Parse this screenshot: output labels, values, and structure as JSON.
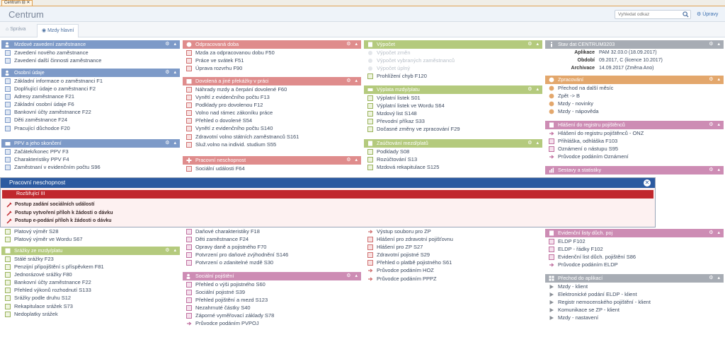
{
  "window": {
    "tab_label": "Centrum"
  },
  "header": {
    "title": "Centrum",
    "search_placeholder": "Vyhledat odkaz",
    "settings_label": "Úpravy"
  },
  "tabs": [
    {
      "label": "Správa"
    },
    {
      "label": "Mzdy hlavní"
    }
  ],
  "colors": {
    "blue": "#7d9ac8",
    "red": "#df8c8c",
    "green": "#b4ca7d",
    "pink": "#cd8cb4",
    "orange": "#e3a76c",
    "gray": "#a7acb4",
    "overlay_header": "#2c5aa0",
    "overlay_sub": "#c0272d"
  },
  "col1": {
    "p1": {
      "title": "Mzdové zavedení zaměstnance",
      "items": [
        "Zavedení nového zaměstnance",
        "Zavedení další činnosti zaměstnance"
      ]
    },
    "p2": {
      "title": "Osobní údaje",
      "items": [
        "Základní informace o zaměstnanci F1",
        "Doplňující údaje o zaměstnanci F2",
        "Adresy zaměstnance F21",
        "Základní osobní údaje F6",
        "Bankovní účty zaměstnance F22",
        "Děti zaměstnance F24",
        "Pracující důchodce F20"
      ]
    },
    "p3": {
      "title": "PPV a jeho skončení",
      "items": [
        "Začátek/konec PPV F3",
        "Charakteristiky PPV F4",
        "Zaměstnaní v evidenčním počtu S96"
      ]
    },
    "p3b": {
      "items": [
        "Platový výměr S28",
        "Platový výměr ve Wordu S67"
      ]
    },
    "p4": {
      "title": "Srážky ze mzdy/platu",
      "items": [
        "Stálé srážky F23",
        "Penzijní připojištění s příspěvkem F81",
        "Jednorázové srážky F80",
        "Bankovní účty zaměstnance F22",
        "Přehled výkonů rozhodnutí S133",
        "Srážky podle druhu S12",
        "Rekapitulace srážek S73",
        "Nedoplatky srážek"
      ]
    }
  },
  "col2": {
    "p1": {
      "title": "Odpracovaná doba",
      "items": [
        "Mzda za odpracovanou dobu F50",
        "Práce ve svátek F51",
        "Úprava rozvrhu F90"
      ]
    },
    "p2": {
      "title": "Dovolená a jiné překážky v práci",
      "items": [
        "Náhrady mzdy a čerpání dovolené F60",
        "Vynětí z evidenčního počtu F13",
        "Podklady pro dovolenou F12",
        "Volno nad rámec zákoníku práce",
        "Přehled o dovolené S54",
        "Vynětí z evidenčního počtu S140",
        "Zdravotní volno státních zaměstnanců S161",
        "Služ.volno na individ. studium S55"
      ]
    },
    "p3": {
      "title": "Pracovní neschopnost",
      "items": [
        "Sociální události F64"
      ]
    },
    "p3b": {
      "items": [
        "Daňové charakteristiky F18",
        "Děti zaměstnance F24",
        "Opravy daně a pojistného F70",
        "Potvrzení pro daňové zvýhodnění S146",
        "Potvrzení o zdanitelné mzdě S30"
      ]
    },
    "p4": {
      "title": "Sociální pojištění",
      "items": [
        "Přehled o výši pojistného S60",
        "Sociální pojistné S39",
        "Přehled pojištění a mezd S123",
        "Nezahrnuté částky S40",
        "Záporné vyměřovací základy S78",
        "Průvodce podáním PVPOJ"
      ]
    }
  },
  "col3": {
    "p1": {
      "title": "Výpočet",
      "items": [
        "Výpočet změn",
        "Výpočet vybraných zaměstnanců",
        "Výpočet úplný",
        "Prohlížení chyb F120"
      ]
    },
    "p2": {
      "title": "Výplata mzdy/platu",
      "items": [
        "Výplatní listek S01",
        "Výplatní listek ve Wordu S64",
        "Mzdový list S148",
        "Převodní příkaz S33",
        "Dočasné změny ve zpracování F29"
      ]
    },
    "p3": {
      "title": "Zaúčtování mezd/platů",
      "items": [
        "Podklady S08",
        "Rozúčtování S13",
        "Mzdová rekapitulace S125"
      ]
    },
    "p3b": {
      "items": [
        "Výstup souboru pro ZP",
        "Hlášení pro zdravotní pojišťovnu",
        "Hlášení pro ZP S27",
        "Zdravotní pojistné S29",
        "Přehled o platbě pojistného S61",
        "Průvodce podáním HOZ",
        "Průvodce podáním PPPZ"
      ]
    }
  },
  "col4": {
    "p1": {
      "title": "Stav dat CENTRUM3203",
      "rows": [
        {
          "k": "Aplikace",
          "v": "PAM 32.03.0 (18.09.2017)"
        },
        {
          "k": "Období",
          "v": "09.2017, C (licence 10.2017)"
        },
        {
          "k": "Archivace",
          "v": "14.09.2017 (Změna Ano)"
        }
      ]
    },
    "p2": {
      "title": "Zpracování",
      "items": [
        "Přechod na další měsíc",
        "Zpět -> B",
        "Mzdy - novinky",
        "Mzdy - nápověda"
      ]
    },
    "p3": {
      "title": "Hlášení do registru pojištěnců",
      "items": [
        "Hlášení do registru pojištěnců - ONZ",
        "Přihláška, odhláška F103",
        "Oznámení o nástupu S95",
        "Průvodce podáním Oznámení"
      ]
    },
    "p4": {
      "title": "Sestavy a statistiky"
    },
    "p5": {
      "title": "Evidenční listy důch. poj",
      "items": [
        "ELDP F102",
        "ELDP - řádky F102",
        "Evidenční list důch. pojištění S86",
        "Průvodce podáním ELDP"
      ]
    },
    "p6": {
      "title": "Přechod do aplikací",
      "items": [
        "Mzdy - klient",
        "Elektronické podání ELDP - klient",
        "Registr nemocenského pojištění - klient",
        "Komunikace se ZP - klient",
        "Mzdy - nastavení"
      ]
    }
  },
  "overlay": {
    "title": "Pracovní neschopnost",
    "sub": "Rozšiřující III",
    "items": [
      "Postup zadání sociálních událostí",
      "Postup vytvoření příloh k žádosti o dávku",
      "Postup e-podání příloh k žádosti o dávku"
    ]
  }
}
